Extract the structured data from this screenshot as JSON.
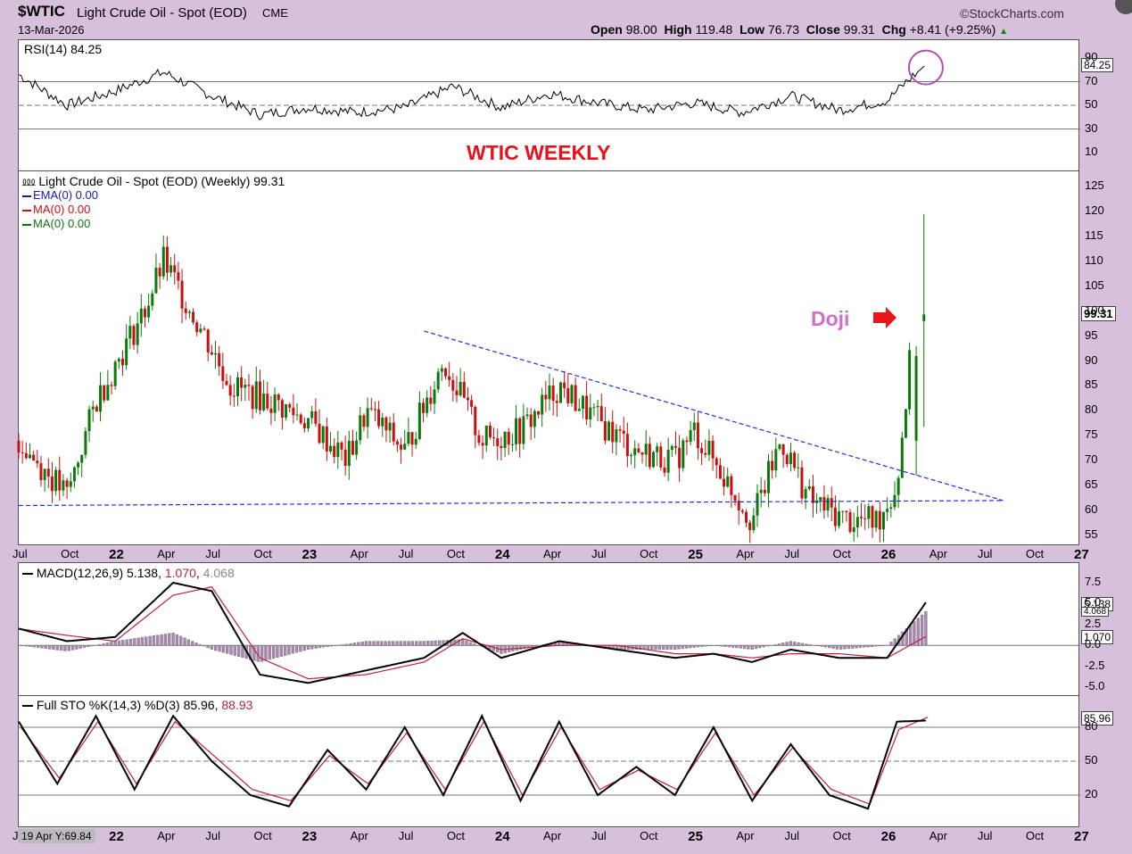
{
  "header": {
    "symbol": "$WTIC",
    "name": "Light Crude Oil - Spot (EOD)",
    "exchange": "CME",
    "date": "13-Mar-2026",
    "brand": "©StockCharts.com",
    "ohlc": {
      "open_label": "Open",
      "open": "98.00",
      "high_label": "High",
      "high": "119.48",
      "low_label": "Low",
      "low": "76.73",
      "close_label": "Close",
      "close": "99.31",
      "chg_label": "Chg",
      "chg": "+8.41 (+9.25%)"
    }
  },
  "rsi": {
    "label": "RSI(14) 84.25",
    "value_tag": "84.25",
    "ticks": [
      10,
      30,
      50,
      70,
      90
    ],
    "color": "#000000"
  },
  "annotations": {
    "title": "WTIC WEEKLY",
    "title_color": "#e8101a",
    "doji": "Doji",
    "doji_color": "#d16fc8"
  },
  "price": {
    "label": "Light Crude Oil - Spot (EOD) (Weekly) 99.31",
    "value_tag": "99.31",
    "legend": [
      {
        "text": "EMA(0) 0.00",
        "color": "#1a1aa8"
      },
      {
        "text": "MA(0) 0.00",
        "color": "#d01010"
      },
      {
        "text": "MA(0) 0.00",
        "color": "#107010"
      }
    ],
    "ticks": [
      55,
      60,
      65,
      70,
      75,
      80,
      85,
      90,
      95,
      100,
      105,
      110,
      115,
      120,
      125
    ],
    "up_color": "#0a7a0a",
    "down_color": "#c81010",
    "trend_color": "#2030e0"
  },
  "x_axis_labels": [
    "Jul",
    "Oct",
    "22",
    "Apr",
    "Jul",
    "Oct",
    "23",
    "Apr",
    "Jul",
    "Oct",
    "24",
    "Apr",
    "Jul",
    "Oct",
    "25",
    "Apr",
    "Jul",
    "Oct",
    "26",
    "Apr",
    "Jul",
    "Oct",
    "27"
  ],
  "macd": {
    "label_prefix": "MACD(12,26,9)",
    "macd": "5.138",
    "signal": "1.070",
    "hist": "4.068",
    "tag_macd": "5.138",
    "tag_hist": "4.068",
    "tag_signal": "1.070",
    "ticks": [
      "-5.0",
      "-2.5",
      "0.0",
      "2.5",
      "5.0",
      "7.5"
    ],
    "macd_color": "#000000",
    "signal_color": "#c02040",
    "hist_color": "#a888b0"
  },
  "sto": {
    "label_prefix": "Full STO %K(14,3) %D(3)",
    "k": "85.96",
    "d": "88.93",
    "value_tag": "85.96",
    "ticks": [
      20,
      50,
      80
    ],
    "k_color": "#000000",
    "d_color": "#c02040"
  },
  "status": "19 Apr Y:69.84",
  "chart_data": [
    {
      "type": "line",
      "title": "RSI(14) 84.25",
      "ylim": [
        0,
        100
      ],
      "series": [
        {
          "name": "RSI(14)",
          "x": [
            2021.5,
            2021.75,
            2022.0,
            2022.25,
            2022.5,
            2022.75,
            2023.0,
            2023.25,
            2023.5,
            2023.75,
            2024.0,
            2024.25,
            2024.5,
            2024.75,
            2025.0,
            2025.25,
            2025.5,
            2025.75,
            2026.0,
            2026.1,
            2026.2
          ],
          "values": [
            76,
            50,
            62,
            78,
            58,
            42,
            48,
            44,
            48,
            66,
            48,
            60,
            52,
            46,
            52,
            44,
            58,
            46,
            54,
            70,
            84.25
          ]
        }
      ]
    },
    {
      "type": "bar",
      "title": "Light Crude Oil - Spot (EOD) (Weekly) 99.31",
      "ylim": [
        55,
        125
      ],
      "categories_x": [
        2021.5,
        2021.75,
        2021.9,
        2022.15,
        2022.25,
        2022.45,
        2022.6,
        2022.8,
        2023.0,
        2023.2,
        2023.3,
        2023.5,
        2023.7,
        2023.9,
        2024.1,
        2024.3,
        2024.5,
        2024.7,
        2024.9,
        2025.0,
        2025.1,
        2025.3,
        2025.45,
        2025.6,
        2025.8,
        2025.95,
        2026.05,
        2026.12,
        2026.2
      ],
      "series": [
        {
          "name": "Light Crude Oil - Spot (EOD)",
          "values": [
            74,
            63,
            82,
            100,
            110,
            96,
            85,
            82,
            78,
            70,
            80,
            72,
            90,
            74,
            76,
            85,
            78,
            72,
            70,
            76,
            70,
            58,
            74,
            62,
            58,
            58,
            65,
            91,
            99.31
          ]
        }
      ],
      "trendlines": [
        {
          "x": [
            2023.6,
            2026.6
          ],
          "values": [
            96,
            62
          ]
        },
        {
          "x": [
            2021.5,
            2026.6
          ],
          "values": [
            61,
            62
          ]
        }
      ]
    },
    {
      "type": "line",
      "title": "MACD(12,26,9) 5.138, 1.070, 4.068",
      "ylim": [
        -5.5,
        8.5
      ],
      "series": [
        {
          "name": "MACD(12,26,9)",
          "x": [
            2021.5,
            2021.75,
            2022.0,
            2022.3,
            2022.5,
            2022.75,
            2023.0,
            2023.3,
            2023.6,
            2023.8,
            2024.0,
            2024.3,
            2024.6,
            2024.9,
            2025.1,
            2025.3,
            2025.5,
            2025.75,
            2026.0,
            2026.2
          ],
          "values": [
            2,
            0.5,
            1.0,
            7.5,
            6.5,
            -3.5,
            -4.5,
            -3.0,
            -1.5,
            1.5,
            -1.5,
            0.5,
            -0.5,
            -1.5,
            -1.0,
            -2.0,
            -0.5,
            -1.5,
            -1.5,
            5.138
          ]
        },
        {
          "name": "Signal",
          "x": [
            2021.5,
            2021.75,
            2022.0,
            2022.3,
            2022.5,
            2022.75,
            2023.0,
            2023.3,
            2023.6,
            2023.8,
            2024.0,
            2024.3,
            2024.6,
            2024.9,
            2025.1,
            2025.3,
            2025.5,
            2025.75,
            2026.0,
            2026.2
          ],
          "values": [
            2,
            1.2,
            0.5,
            6.0,
            7.0,
            -1.5,
            -4.0,
            -3.5,
            -2.0,
            0.8,
            -0.5,
            0.0,
            0.0,
            -1.0,
            -1.0,
            -1.5,
            -1.0,
            -1.0,
            -1.5,
            1.07
          ]
        }
      ]
    },
    {
      "type": "line",
      "title": "Full STO %K(14,3) %D(3) 85.96, 88.93",
      "ylim": [
        0,
        100
      ],
      "series": [
        {
          "name": "%K(14,3)",
          "x": [
            2021.5,
            2021.7,
            2021.9,
            2022.1,
            2022.3,
            2022.5,
            2022.7,
            2022.9,
            2023.1,
            2023.3,
            2023.5,
            2023.7,
            2023.9,
            2024.1,
            2024.3,
            2024.5,
            2024.7,
            2024.9,
            2025.1,
            2025.3,
            2025.5,
            2025.7,
            2025.9,
            2026.05,
            2026.2
          ],
          "values": [
            85,
            30,
            90,
            25,
            90,
            50,
            20,
            10,
            60,
            25,
            80,
            20,
            90,
            15,
            85,
            20,
            45,
            20,
            80,
            15,
            65,
            20,
            8,
            85,
            85.96
          ]
        },
        {
          "name": "%D(3)",
          "x": [
            2021.5,
            2021.7,
            2021.9,
            2022.1,
            2022.3,
            2022.5,
            2022.7,
            2022.9,
            2023.1,
            2023.3,
            2023.5,
            2023.7,
            2023.9,
            2024.1,
            2024.3,
            2024.5,
            2024.7,
            2024.9,
            2025.1,
            2025.3,
            2025.5,
            2025.7,
            2025.9,
            2026.05,
            2026.2
          ],
          "values": [
            80,
            35,
            85,
            30,
            85,
            55,
            25,
            15,
            55,
            30,
            75,
            25,
            85,
            20,
            80,
            25,
            42,
            25,
            75,
            20,
            62,
            25,
            12,
            78,
            88.93
          ]
        }
      ]
    }
  ]
}
